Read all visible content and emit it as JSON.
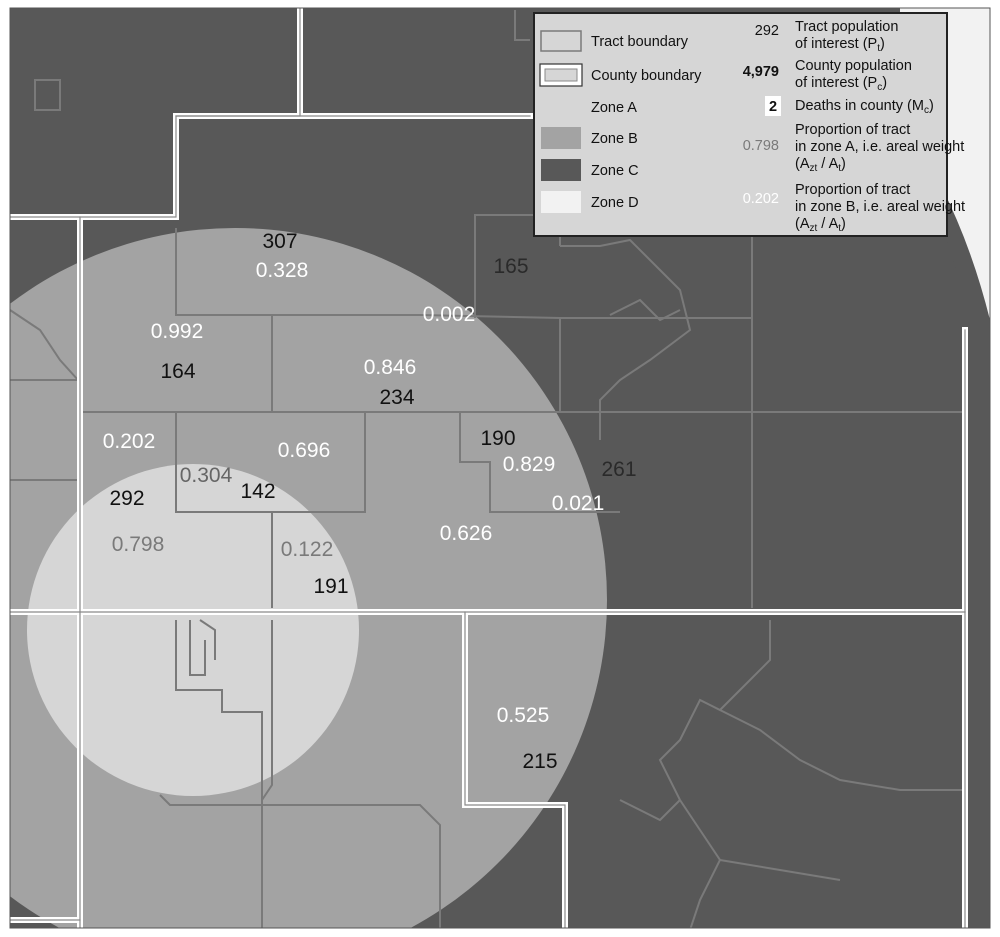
{
  "colors": {
    "zone_a": "#d6d6d6",
    "zone_b": "#a3a3a3",
    "zone_c": "#585858",
    "zone_d": "#f2f2f2",
    "tract_line": "#7a7a7a",
    "county_line": "#ffffff"
  },
  "legend": {
    "tract_boundary": "Tract boundary",
    "county_boundary": "County boundary",
    "zone_a": "Zone A",
    "zone_b": "Zone B",
    "zone_c": "Zone C",
    "zone_d": "Zone D",
    "tract_pop_value": "292",
    "tract_pop_line1": "Tract population",
    "tract_pop_line2": "of interest (P",
    "tract_pop_sub": "t",
    "county_pop_value": "4,979",
    "county_pop_line1": "County population",
    "county_pop_line2": "of interest (P",
    "county_pop_sub": "c",
    "deaths_value": "2",
    "deaths_label": "Deaths in county (M",
    "deaths_sub": "c",
    "prop_a_value": "0.798",
    "prop_a_line1": "Proportion of tract",
    "prop_a_line2": "in zone A, i.e. areal weight",
    "prop_b_value": "0.202",
    "prop_b_line1": "Proportion of tract",
    "prop_b_line2": "in zone B, i.e. areal weight",
    "weight_open": "(A",
    "weight_sub1": "zt",
    "weight_mid": " / A",
    "weight_sub2": "t",
    "weight_close": ")"
  },
  "map_labels": [
    {
      "text": "307",
      "kind": "population"
    },
    {
      "text": "0.328",
      "kind": "weight-b"
    },
    {
      "text": "165",
      "kind": "population"
    },
    {
      "text": "0.992",
      "kind": "weight-b"
    },
    {
      "text": "0.002",
      "kind": "weight-b"
    },
    {
      "text": "164",
      "kind": "population"
    },
    {
      "text": "0.846",
      "kind": "weight-b"
    },
    {
      "text": "234",
      "kind": "population"
    },
    {
      "text": "0.202",
      "kind": "weight-b"
    },
    {
      "text": "0.696",
      "kind": "weight-b"
    },
    {
      "text": "190",
      "kind": "population"
    },
    {
      "text": "0.829",
      "kind": "weight-b"
    },
    {
      "text": "261",
      "kind": "population"
    },
    {
      "text": "0.304",
      "kind": "weight-a"
    },
    {
      "text": "142",
      "kind": "population"
    },
    {
      "text": "292",
      "kind": "population"
    },
    {
      "text": "0.021",
      "kind": "weight-b"
    },
    {
      "text": "0.798",
      "kind": "weight-a"
    },
    {
      "text": "0.626",
      "kind": "weight-b"
    },
    {
      "text": "0.122",
      "kind": "weight-a"
    },
    {
      "text": "191",
      "kind": "population"
    },
    {
      "text": "0.525",
      "kind": "weight-b"
    },
    {
      "text": "215",
      "kind": "population"
    }
  ]
}
